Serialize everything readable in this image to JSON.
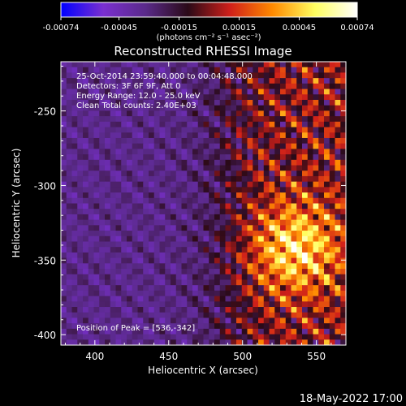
{
  "chart_data": {
    "type": "heatmap",
    "title": "Reconstructed RHESSI Image",
    "xlabel": "Heliocentric X (arcsec)",
    "ylabel": "Heliocentric Y (arcsec)",
    "xlim": [
      377,
      570
    ],
    "ylim": [
      -407,
      -217
    ],
    "x_ticks": [
      400,
      450,
      500,
      550
    ],
    "y_ticks": [
      -250,
      -300,
      -350,
      -400
    ],
    "colorbar": {
      "range": [
        -0.00074,
        0.00074
      ],
      "ticks": [
        "-0.00074",
        "-0.00045",
        "-0.00015",
        "0.00015",
        "0.00045",
        "0.00074"
      ],
      "unit_label": "(photons cm⁻² s⁻¹ asec⁻²)",
      "colormap": [
        "#0000ff",
        "#7a2fd0",
        "#5a2a8a",
        "#2a0a18",
        "#d0201a",
        "#ff8a00",
        "#ffff60",
        "#ffffff"
      ]
    },
    "annotations": {
      "time": "25-Oct-2014 23:59:40.000 to 00:04:48.000",
      "detectors": "Detectors: 3F 6F 9F, Att 0",
      "energy": "Energy Range: 12.0 - 25.0 keV",
      "clean": "Clean     Total counts: 2.40E+03",
      "peak": "Position of Peak = [536,-342]"
    },
    "peak_position": [
      536,
      -342
    ],
    "timestamp": "18-May-2022 17:00"
  }
}
